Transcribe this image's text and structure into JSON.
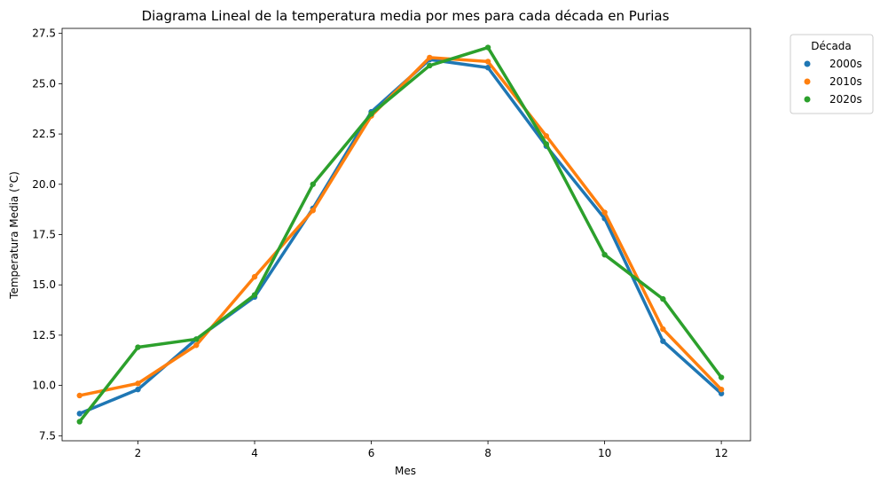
{
  "chart_data": {
    "type": "line",
    "title": "Diagrama Lineal de la temperatura media por mes para cada década en Purias",
    "xlabel": "Mes",
    "ylabel": "Temperatura Media (°C)",
    "xlim": [
      0.7,
      12.5
    ],
    "ylim": [
      7.25,
      27.75
    ],
    "x": [
      1,
      2,
      3,
      4,
      5,
      6,
      7,
      8,
      9,
      10,
      11,
      12
    ],
    "xticks": [
      2,
      4,
      6,
      8,
      10,
      12
    ],
    "xtick_labels": [
      "2",
      "4",
      "6",
      "8",
      "10",
      "12"
    ],
    "yticks": [
      7.5,
      10.0,
      12.5,
      15.0,
      17.5,
      20.0,
      22.5,
      25.0,
      27.5
    ],
    "ytick_labels": [
      "7.5",
      "10.0",
      "12.5",
      "15.0",
      "17.5",
      "20.0",
      "22.5",
      "25.0",
      "27.5"
    ],
    "grid": false,
    "legend": {
      "title": "Década",
      "placement": "outside-top-right"
    },
    "series": [
      {
        "name": "2000s",
        "color": "#1f77b4",
        "values": [
          8.6,
          9.8,
          12.3,
          14.4,
          18.8,
          23.6,
          26.2,
          25.8,
          21.9,
          18.3,
          12.2,
          9.6
        ]
      },
      {
        "name": "2010s",
        "color": "#ff7f0e",
        "values": [
          9.5,
          10.1,
          12.0,
          15.4,
          18.7,
          23.4,
          26.3,
          26.1,
          22.4,
          18.6,
          12.8,
          9.8
        ]
      },
      {
        "name": "2020s",
        "color": "#2ca02c",
        "values": [
          8.2,
          11.9,
          12.3,
          14.5,
          20.0,
          23.5,
          25.9,
          26.8,
          22.0,
          16.5,
          14.3,
          10.4
        ]
      }
    ]
  }
}
